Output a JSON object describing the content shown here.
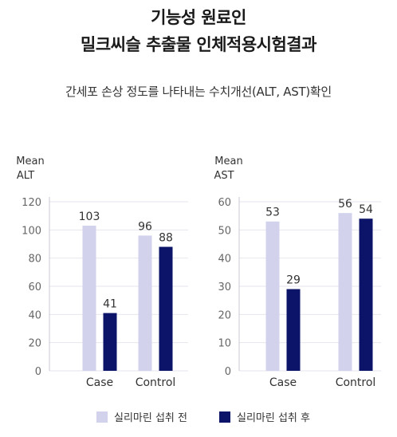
{
  "header": {
    "title_line1": "기능성 원료인",
    "title_line2": "밀크씨슬 추출물 인체적용시험결과",
    "subtitle": "간세포 손상 정도를 나타내는 수치개선(ALT, AST)확인"
  },
  "legend": {
    "before_label": "실리마린 섭취 전",
    "after_label": "실리마린 섭취 후"
  },
  "colors": {
    "before": "#d2d2ec",
    "after": "#0b1468",
    "grid": "#e6e6ee",
    "tick_text": "#666666"
  },
  "chart_data": [
    {
      "type": "bar",
      "ylabel_line1": "Mean",
      "ylabel_line2": "ALT",
      "categories": [
        "Case",
        "Control"
      ],
      "series": [
        {
          "name": "실리마린 섭취 전",
          "values": [
            103,
            96
          ]
        },
        {
          "name": "실리마린 섭취 후",
          "values": [
            41,
            88
          ]
        }
      ],
      "ylim": [
        0,
        120
      ],
      "yticks": [
        0,
        20,
        40,
        60,
        80,
        100,
        120
      ],
      "grid": true,
      "legend_position": "bottom"
    },
    {
      "type": "bar",
      "ylabel_line1": "Mean",
      "ylabel_line2": "AST",
      "categories": [
        "Case",
        "Control"
      ],
      "series": [
        {
          "name": "실리마린 섭취 전",
          "values": [
            53,
            56
          ]
        },
        {
          "name": "실리마린 섭취 후",
          "values": [
            29,
            54
          ]
        }
      ],
      "ylim": [
        0,
        60
      ],
      "yticks": [
        0,
        10,
        20,
        30,
        40,
        50,
        60
      ],
      "grid": true,
      "legend_position": "bottom"
    }
  ]
}
